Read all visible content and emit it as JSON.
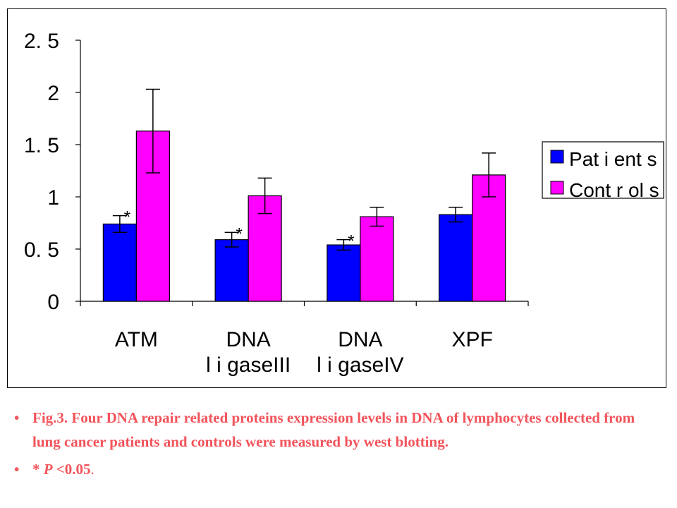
{
  "chart_data": {
    "type": "bar",
    "categories": [
      [
        "ATM"
      ],
      [
        "DNA",
        "l i gaseIII"
      ],
      [
        "DNA",
        "l i gaseIV"
      ],
      [
        "XPF"
      ]
    ],
    "series": [
      {
        "name": "Pat i ent s",
        "color": "#0000ff",
        "values": [
          0.74,
          0.59,
          0.54,
          0.83
        ],
        "errors": [
          0.08,
          0.07,
          0.05,
          0.07
        ],
        "significance": [
          "*",
          "*",
          "*",
          ""
        ]
      },
      {
        "name": "Cont r ol s",
        "color": "#ff00ff",
        "values": [
          1.63,
          1.01,
          0.81,
          1.21
        ],
        "errors": [
          0.4,
          0.17,
          0.09,
          0.21
        ],
        "significance": [
          "",
          "",
          "",
          ""
        ]
      }
    ],
    "ylim": [
      0,
      2.5
    ],
    "yticks": [
      0,
      0.5,
      1,
      1.5,
      2,
      2.5
    ],
    "yticklabels": [
      "0",
      "0. 5",
      "1",
      "1. 5",
      "2",
      "2. 5"
    ],
    "grid": false,
    "legend_position": "right"
  },
  "caption": {
    "bullet": "•",
    "text": "Fig.3. Four DNA repair related proteins expression levels in DNA of lymphocytes collected from lung cancer patients and controls were measured by west blotting.",
    "note_star": "* ",
    "note_p": "P",
    "note_rest": " <0.05",
    "note_end": "."
  }
}
